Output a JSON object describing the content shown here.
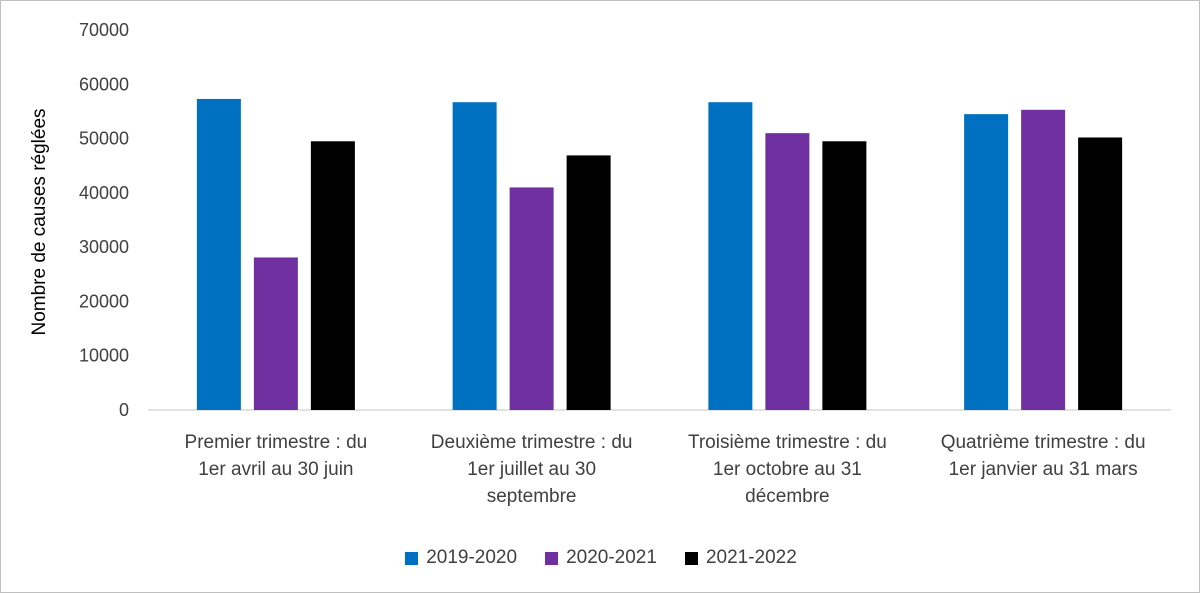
{
  "chart_data": {
    "type": "bar",
    "categories": [
      [
        "Premier trimestre : du",
        "1er avril au 30 juin"
      ],
      [
        "Deuxième trimestre : du",
        "1er juillet au 30",
        "septembre"
      ],
      [
        "Troisième trimestre : du",
        "1er octobre au 31",
        "décembre"
      ],
      [
        "Quatrième trimestre : du",
        "1er janvier au 31 mars"
      ]
    ],
    "series": [
      {
        "name": "2019-2020",
        "color": "#0070C0",
        "values": [
          57300,
          56700,
          56700,
          54500
        ]
      },
      {
        "name": "2020-2021",
        "color": "#7030A0",
        "values": [
          28100,
          41000,
          51000,
          55300
        ]
      },
      {
        "name": "2021-2022",
        "color": "#000000",
        "values": [
          49500,
          46900,
          49500,
          50200
        ]
      }
    ],
    "ylabel": "Nombre de causes réglées",
    "xlabel": "",
    "ylim": [
      0,
      70000
    ],
    "yticks": [
      "0",
      "10000",
      "20000",
      "30000",
      "40000",
      "50000",
      "60000",
      "70000"
    ],
    "grid": false,
    "legend_position": "bottom"
  }
}
